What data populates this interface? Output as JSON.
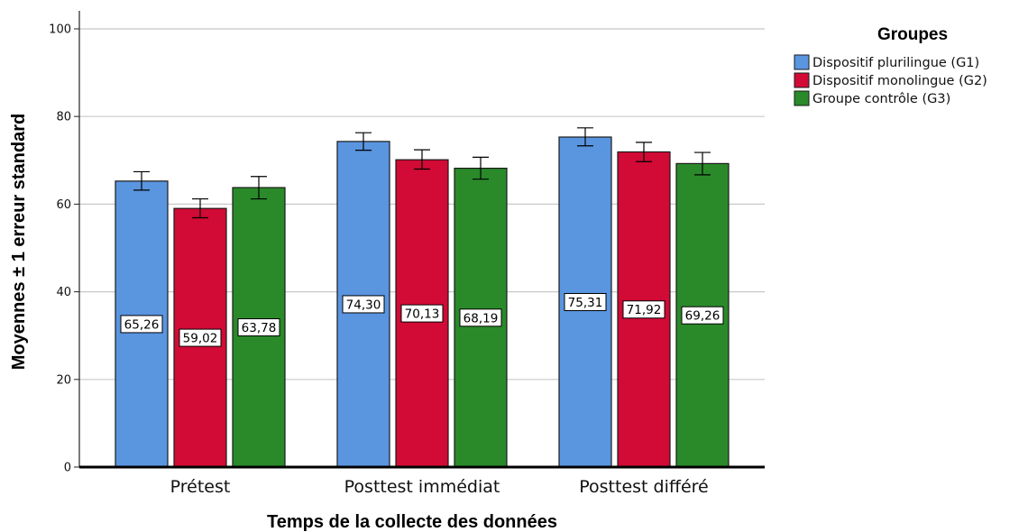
{
  "chart_data": {
    "type": "bar",
    "categories": [
      "Prétest",
      "Posttest immédiat",
      "Posttest différé"
    ],
    "series": [
      {
        "name": "Dispositif plurilingue (G1)",
        "color": "#5a95e0",
        "values": [
          65.26,
          74.3,
          75.31
        ],
        "labels": [
          "65,26",
          "74,30",
          "75,31"
        ],
        "err_low": [
          63.2,
          72.3,
          73.3
        ],
        "err_high": [
          67.4,
          76.3,
          77.4
        ]
      },
      {
        "name": "Dispositif monolingue (G2)",
        "color": "#d20a36",
        "values": [
          59.02,
          70.13,
          71.92
        ],
        "labels": [
          "59,02",
          "70,13",
          "71,92"
        ],
        "err_low": [
          56.9,
          68.0,
          69.7
        ],
        "err_high": [
          61.2,
          72.4,
          74.1
        ]
      },
      {
        "name": "Groupe contrôle (G3)",
        "color": "#2a8a2a",
        "values": [
          63.78,
          68.19,
          69.26
        ],
        "labels": [
          "63,78",
          "68,19",
          "69,26"
        ],
        "err_low": [
          61.2,
          65.7,
          66.7
        ],
        "err_high": [
          66.3,
          70.7,
          71.8
        ]
      }
    ],
    "xlabel": "Temps de la collecte des données",
    "ylabel": "Moyennes ± 1 erreur standard",
    "ylim": [
      0,
      100
    ],
    "yticks": [
      "0",
      "20",
      "40",
      "60",
      "80",
      "100"
    ],
    "grid": true,
    "legend_title": "Groupes",
    "legend_position": "top-right"
  }
}
